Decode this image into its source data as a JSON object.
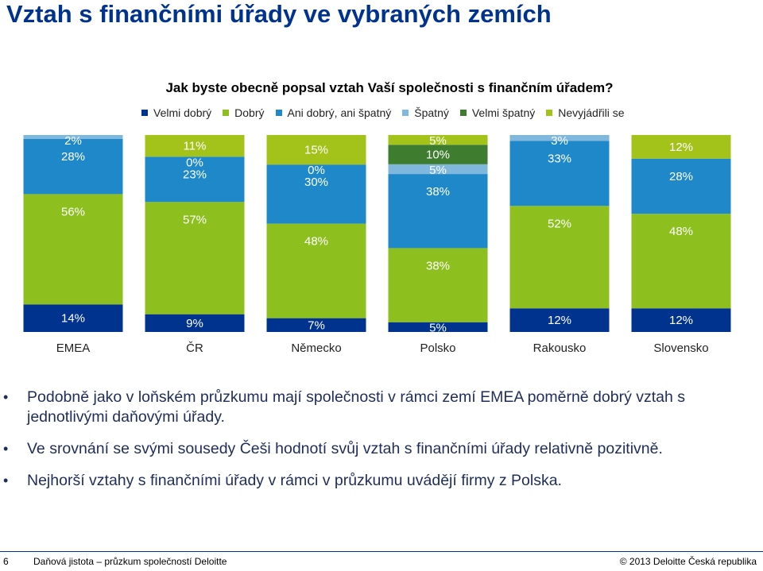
{
  "header": {
    "title": "Vztah s finančními úřady ve vybraných zemích"
  },
  "chart_data": {
    "type": "bar",
    "stacked": true,
    "normalized": true,
    "title": "Jak byste obecně popsal vztah Vaší společnosti s finančním úřadem?",
    "xlabel": "",
    "ylabel": "",
    "legend_position": "top",
    "grid": false,
    "categories": [
      "EMEA",
      "ČR",
      "Německo",
      "Polsko",
      "Rakousko",
      "Slovensko"
    ],
    "series": [
      {
        "name": "Velmi dobrý",
        "color": "#00338d",
        "values": [
          14,
          9,
          7,
          5,
          12,
          12
        ],
        "labels": [
          "14%",
          "9%",
          "7%",
          "5%",
          "12%",
          "12%"
        ]
      },
      {
        "name": "Dobrý",
        "color": "#8dbf1f",
        "values": [
          56,
          57,
          48,
          38,
          52,
          48
        ],
        "labels": [
          "56%",
          "57%",
          "48%",
          "38%",
          "52%",
          "48%"
        ]
      },
      {
        "name": "Ani dobrý, ani špatný",
        "color": "#1e88c9",
        "values": [
          28,
          23,
          30,
          38,
          33,
          28
        ],
        "labels": [
          "28%",
          "23%",
          "30%",
          "38%",
          "33%",
          "28%"
        ]
      },
      {
        "name": "Špatný",
        "color": "#7fb7dd",
        "values": [
          2,
          0,
          0,
          5,
          3,
          0
        ],
        "labels": [
          "2%",
          "0%",
          "0%",
          "5%",
          "3%",
          ""
        ]
      },
      {
        "name": "Velmi špatný",
        "color": "#3e7c2f",
        "values": [
          0,
          0,
          0,
          10,
          0,
          0
        ],
        "labels": [
          "",
          "",
          "",
          "10%",
          "",
          ""
        ]
      },
      {
        "name": "Nevyjádřili se",
        "color": "#a3c31a",
        "values": [
          0,
          11,
          15,
          5,
          0,
          12
        ],
        "labels": [
          "",
          "11%",
          "15%",
          "5%",
          "",
          "12%"
        ]
      }
    ]
  },
  "bullets": [
    "Podobně jako v loňském průzkumu mají společnosti v rámci zemí EMEA poměrně dobrý vztah s jednotlivými daňovými úřady.",
    "Ve srovnání se svými sousedy Češi hodnotí svůj vztah s finančními úřady relativně pozitivně.",
    "Nejhorší vztahy s finančními úřady v rámci v průzkumu uvádějí firmy z Polska."
  ],
  "footer": {
    "page_number": "6",
    "text": "Daňová jistota – průzkum společností Deloitte",
    "copyright": "© 2013 Deloitte Česká republika"
  }
}
